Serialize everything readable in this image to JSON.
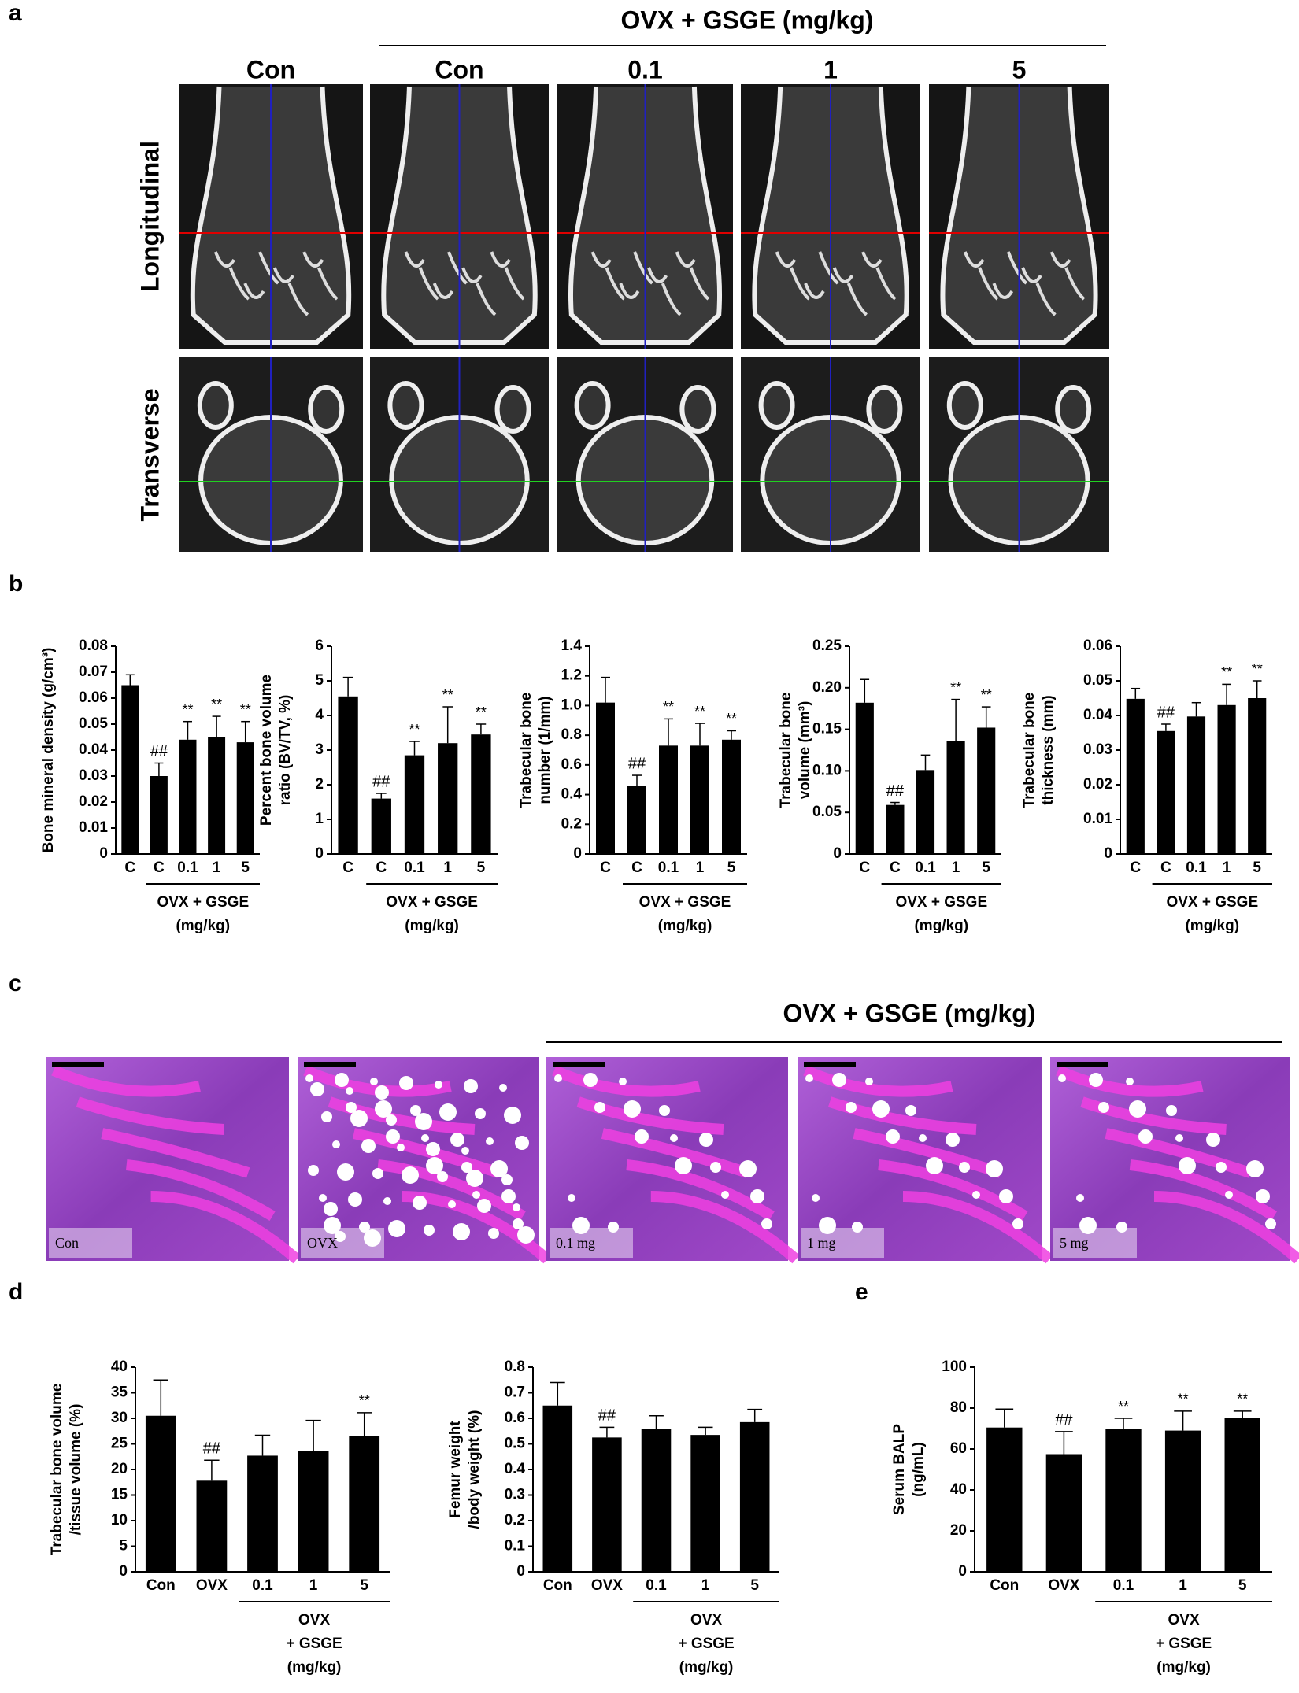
{
  "panel_labels": [
    "a",
    "b",
    "c",
    "d",
    "e"
  ],
  "panel_a": {
    "header": "OVX + GSGE (mg/kg)",
    "columns": [
      "Con",
      "Con",
      "0.1",
      "1",
      "5"
    ],
    "rows": [
      "Longitudinal",
      "Transverse"
    ]
  },
  "panel_c": {
    "header": "OVX + GSGE (mg/kg)",
    "image_labels": [
      "Con",
      "OVX",
      "0.1 mg",
      "1 mg",
      "5 mg"
    ]
  },
  "chart_data": [
    {
      "type": "bar",
      "ylabel": [
        "Bone mineral density (g/cm³)"
      ],
      "categories": [
        "C",
        "C",
        "0.1",
        "1",
        "5"
      ],
      "group_label": [
        "OVX + GSGE",
        "(mg/kg)"
      ],
      "values": [
        0.065,
        0.03,
        0.044,
        0.045,
        0.043
      ],
      "errors": [
        0.004,
        0.005,
        0.007,
        0.008,
        0.008
      ],
      "annotations": [
        null,
        "##",
        "**",
        "**",
        "**"
      ],
      "color": "#000000",
      "ylim": [
        0,
        0.08
      ],
      "yticks": [
        0,
        0.01,
        0.02,
        0.03,
        0.04,
        0.05,
        0.06,
        0.07,
        0.08
      ]
    },
    {
      "type": "bar",
      "ylabel": [
        "Percent bone volume",
        "ratio (BV/TV, %)"
      ],
      "categories": [
        "C",
        "C",
        "0.1",
        "1",
        "5"
      ],
      "group_label": [
        "OVX + GSGE",
        "(mg/kg)"
      ],
      "values": [
        4.55,
        1.6,
        2.85,
        3.2,
        3.45
      ],
      "errors": [
        0.55,
        0.15,
        0.4,
        1.05,
        0.3
      ],
      "annotations": [
        null,
        "##",
        "**",
        "**",
        "**"
      ],
      "color": "#000000",
      "ylim": [
        0,
        6
      ],
      "yticks": [
        0,
        1,
        2,
        3,
        4,
        5,
        6
      ]
    },
    {
      "type": "bar",
      "ylabel": [
        "Trabecular bone",
        "number (1/mm)"
      ],
      "categories": [
        "C",
        "C",
        "0.1",
        "1",
        "5"
      ],
      "group_label": [
        "OVX + GSGE",
        "(mg/kg)"
      ],
      "values": [
        1.02,
        0.46,
        0.73,
        0.73,
        0.77
      ],
      "errors": [
        0.17,
        0.07,
        0.18,
        0.15,
        0.06
      ],
      "annotations": [
        null,
        "##",
        "**",
        "**",
        "**"
      ],
      "color": "#000000",
      "ylim": [
        0,
        1.4
      ],
      "yticks": [
        0,
        0.2,
        0.4,
        0.6,
        0.8,
        {
          "value": 1,
          "label": "1.0"
        },
        1.2,
        1.4
      ]
    },
    {
      "type": "bar",
      "ylabel": [
        "Trabecular bone",
        "volume (mm³)"
      ],
      "categories": [
        "C",
        "C",
        "0.1",
        "1",
        "5"
      ],
      "group_label": [
        "OVX + GSGE",
        "(mg/kg)"
      ],
      "values": [
        0.182,
        0.059,
        0.101,
        0.136,
        0.152
      ],
      "errors": [
        0.028,
        0.003,
        0.018,
        0.05,
        0.025
      ],
      "annotations": [
        null,
        "##",
        null,
        "**",
        "**"
      ],
      "color": "#000000",
      "ylim": [
        0,
        0.25
      ],
      "yticks": [
        0,
        0.05,
        {
          "value": 0.1,
          "label": "0.10"
        },
        0.15,
        {
          "value": 0.2,
          "label": "0.20"
        },
        0.25
      ]
    },
    {
      "type": "bar",
      "ylabel": [
        "Trabecular bone",
        "thickness (mm)"
      ],
      "categories": [
        "C",
        "C",
        "0.1",
        "1",
        "5"
      ],
      "group_label": [
        "OVX + GSGE",
        "(mg/kg)"
      ],
      "values": [
        0.0448,
        0.0355,
        0.0397,
        0.043,
        0.045
      ],
      "errors": [
        0.003,
        0.002,
        0.004,
        0.006,
        0.005
      ],
      "annotations": [
        null,
        "##",
        null,
        "**",
        "**"
      ],
      "color": "#000000",
      "ylim": [
        0,
        0.06
      ],
      "yticks": [
        0,
        0.01,
        0.02,
        0.03,
        0.04,
        0.05,
        0.06
      ]
    },
    {
      "type": "bar",
      "ylabel": [
        "Trabecular bone volume",
        "/tissue volume (%)"
      ],
      "categories": [
        "Con",
        "OVX",
        "0.1",
        "1",
        "5"
      ],
      "group_label": [
        "OVX",
        "+ GSGE",
        "(mg/kg)"
      ],
      "values": [
        30.5,
        17.8,
        22.7,
        23.6,
        26.6
      ],
      "errors": [
        7,
        4,
        4,
        6,
        4.5
      ],
      "annotations": [
        null,
        "##",
        null,
        null,
        "**"
      ],
      "color": "#000000",
      "ylim": [
        0,
        40
      ],
      "yticks": [
        0,
        5,
        10,
        15,
        20,
        25,
        30,
        35,
        40
      ]
    },
    {
      "type": "bar",
      "ylabel": [
        "Femur weight",
        "/body weight (%)"
      ],
      "categories": [
        "Con",
        "OVX",
        "0.1",
        "1",
        "5"
      ],
      "group_label": [
        "OVX",
        "+ GSGE",
        "(mg/kg)"
      ],
      "values": [
        0.65,
        0.525,
        0.56,
        0.535,
        0.585
      ],
      "errors": [
        0.09,
        0.04,
        0.05,
        0.03,
        0.05
      ],
      "annotations": [
        null,
        "##",
        null,
        null,
        null
      ],
      "color": "#000000",
      "ylim": [
        0,
        0.8
      ],
      "yticks": [
        0,
        0.1,
        0.2,
        0.3,
        0.4,
        0.5,
        0.6,
        0.7,
        0.8
      ]
    },
    {
      "type": "bar",
      "ylabel": [
        "Serum BALP",
        "(ng/mL)"
      ],
      "categories": [
        "Con",
        "OVX",
        "0.1",
        "1",
        "5"
      ],
      "group_label": [
        "OVX",
        "+ GSGE",
        "(mg/kg)"
      ],
      "values": [
        70.5,
        57.5,
        70,
        69,
        75
      ],
      "errors": [
        9,
        11,
        5,
        9.5,
        3.5
      ],
      "annotations": [
        null,
        "##",
        "**",
        "**",
        "**"
      ],
      "color": "#000000",
      "ylim": [
        0,
        100
      ],
      "yticks": [
        0,
        20,
        40,
        60,
        80,
        100
      ]
    }
  ]
}
